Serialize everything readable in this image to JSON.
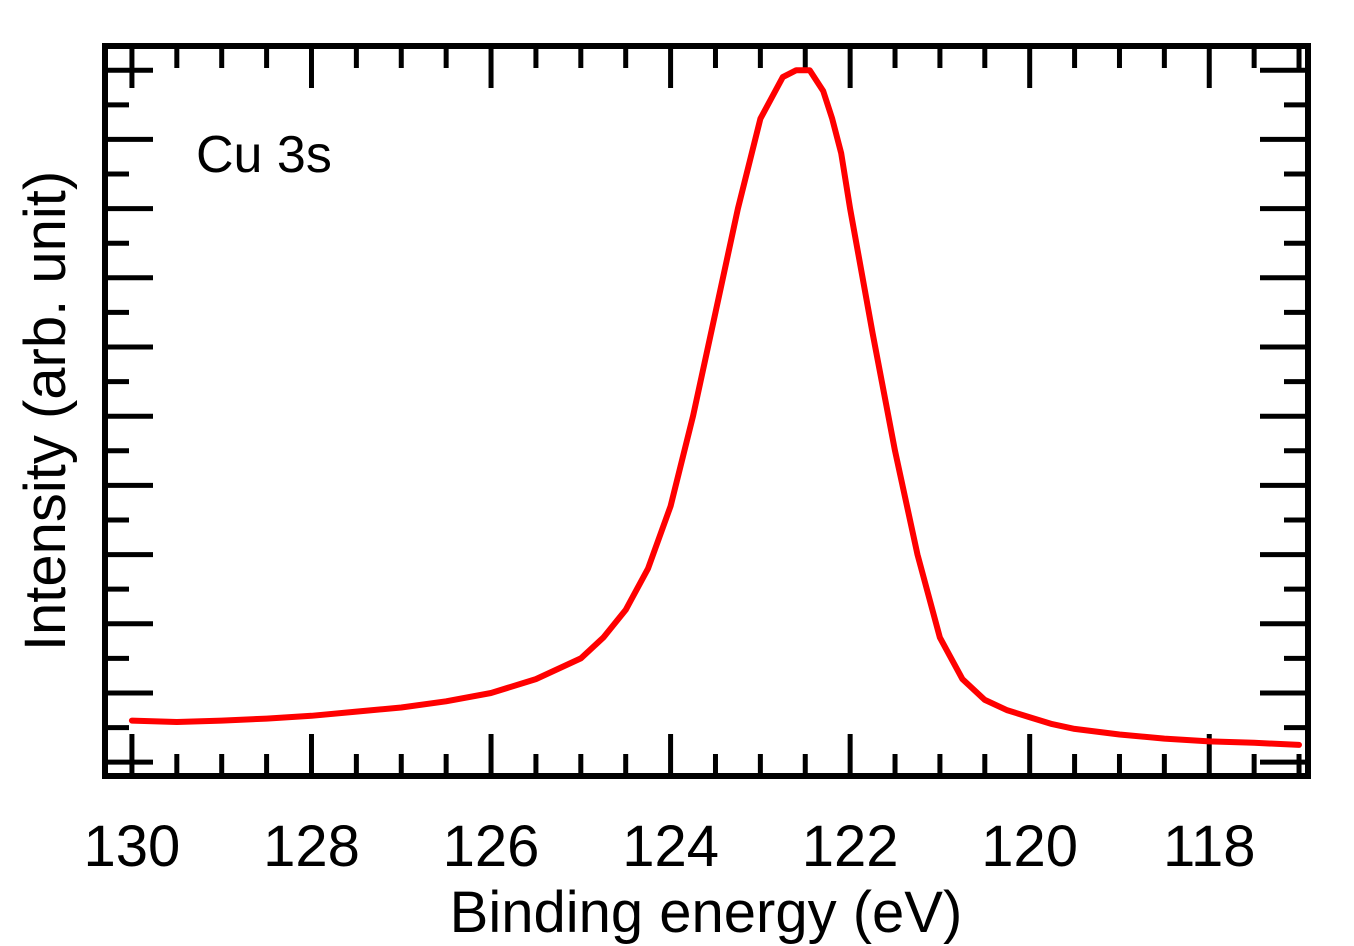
{
  "chart_data": {
    "type": "line",
    "title": "",
    "xlabel": "Binding energy (eV)",
    "ylabel": "Intensity (arb. unit)",
    "annotation": "Cu 3s",
    "xlim": [
      130.3,
      116.9
    ],
    "ylim": [
      -0.02,
      1.035
    ],
    "x_reversed": true,
    "y_tick_labels_shown": false,
    "grid": false,
    "legend": "none",
    "x_major_ticks": [
      130,
      128,
      126,
      124,
      122,
      120,
      118
    ],
    "x_tick_labels": [
      "130",
      "128",
      "126",
      "124",
      "122",
      "120",
      "118"
    ],
    "series": [
      {
        "color": "#ff0000",
        "x": [
          130.0,
          129.5,
          129.0,
          128.5,
          128.0,
          127.5,
          127.0,
          126.5,
          126.0,
          125.5,
          125.0,
          124.75,
          124.5,
          124.25,
          124.0,
          123.75,
          123.5,
          123.25,
          123.0,
          122.75,
          122.6,
          122.45,
          122.3,
          122.2,
          122.1,
          122.0,
          121.75,
          121.5,
          121.25,
          121.0,
          120.75,
          120.5,
          120.25,
          120.0,
          119.75,
          119.5,
          119.0,
          118.5,
          118.0,
          117.5,
          117.0
        ],
        "values": [
          0.06,
          0.058,
          0.06,
          0.063,
          0.067,
          0.073,
          0.079,
          0.088,
          0.1,
          0.12,
          0.15,
          0.18,
          0.22,
          0.28,
          0.37,
          0.5,
          0.65,
          0.8,
          0.93,
          0.99,
          1.0,
          1.0,
          0.97,
          0.93,
          0.88,
          0.8,
          0.62,
          0.45,
          0.3,
          0.18,
          0.12,
          0.09,
          0.075,
          0.065,
          0.055,
          0.048,
          0.04,
          0.034,
          0.03,
          0.028,
          0.025
        ]
      }
    ]
  }
}
